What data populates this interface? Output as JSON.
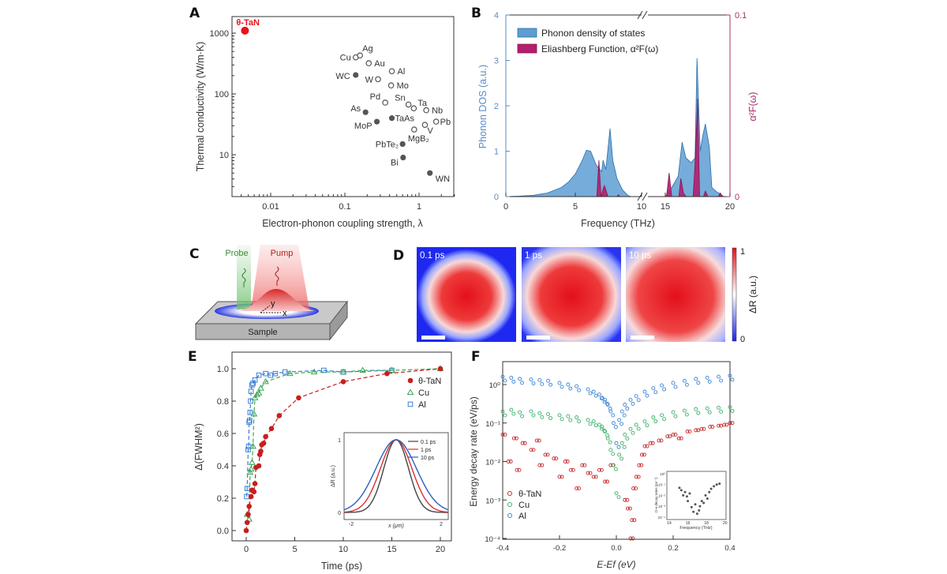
{
  "panel_labels": [
    "A",
    "B",
    "C",
    "D",
    "E",
    "F"
  ],
  "chart_data": [
    {
      "type": "scatter",
      "xlabel": "Electron-phonon coupling strength, λ",
      "ylabel": "Thermal conductivity (W/m·K)",
      "xscale": "log",
      "yscale": "log",
      "xlim": [
        0.003,
        3
      ],
      "ylim": [
        2,
        2000
      ],
      "xticks": [
        "0.01",
        "0.1",
        "1"
      ],
      "xtick_values": [
        0.01,
        0.1,
        1
      ],
      "yticks": [
        "10",
        "100",
        "1000"
      ],
      "ytick_values": [
        10,
        100,
        1000
      ],
      "highlight_color": "#e8131b",
      "points": [
        {
          "label": "θ-TaN",
          "x": 0.0045,
          "y": 1100,
          "marker": "filled-red"
        },
        {
          "label": "Cu",
          "x": 0.14,
          "y": 400,
          "marker": "open"
        },
        {
          "label": "Ag",
          "x": 0.16,
          "y": 430,
          "marker": "open"
        },
        {
          "label": "Au",
          "x": 0.21,
          "y": 320,
          "marker": "open"
        },
        {
          "label": "Al",
          "x": 0.43,
          "y": 237,
          "marker": "open"
        },
        {
          "label": "WC",
          "x": 0.14,
          "y": 205,
          "marker": "filled"
        },
        {
          "label": "W",
          "x": 0.28,
          "y": 175,
          "marker": "open"
        },
        {
          "label": "Mo",
          "x": 0.42,
          "y": 138,
          "marker": "open"
        },
        {
          "label": "Pd",
          "x": 0.35,
          "y": 72,
          "marker": "open"
        },
        {
          "label": "Sn",
          "x": 0.72,
          "y": 67,
          "marker": "open"
        },
        {
          "label": "Ta",
          "x": 0.85,
          "y": 58,
          "marker": "open"
        },
        {
          "label": "Nb",
          "x": 1.25,
          "y": 54,
          "marker": "open"
        },
        {
          "label": "As",
          "x": 0.19,
          "y": 50,
          "marker": "filled"
        },
        {
          "label": "TaAs",
          "x": 0.43,
          "y": 40,
          "marker": "filled"
        },
        {
          "label": "MoP",
          "x": 0.27,
          "y": 35,
          "marker": "filled"
        },
        {
          "label": "Pb",
          "x": 1.7,
          "y": 35,
          "marker": "open"
        },
        {
          "label": "V",
          "x": 1.2,
          "y": 31,
          "marker": "open"
        },
        {
          "label": "MgB₂",
          "x": 0.86,
          "y": 26,
          "marker": "open"
        },
        {
          "label": "PbTe₂",
          "x": 0.6,
          "y": 15,
          "marker": "filled"
        },
        {
          "label": "Bi",
          "x": 0.61,
          "y": 9,
          "marker": "filled"
        },
        {
          "label": "WN",
          "x": 1.4,
          "y": 5,
          "marker": "filled"
        }
      ]
    },
    {
      "type": "area",
      "xlabel": "Frequency (THz)",
      "ylabel": "Phonon DOS (a.u.)",
      "ylabel_right": "α²F(ω)",
      "x_axis_break": [
        10,
        15
      ],
      "xticks": [
        "0",
        "5",
        "10",
        "15",
        "20"
      ],
      "xtick_values": [
        0,
        5,
        10,
        15,
        20
      ],
      "ylim": [
        0,
        4
      ],
      "yticks": [
        "0",
        "1",
        "2",
        "3",
        "4"
      ],
      "ylim_right": [
        0,
        0.1
      ],
      "yticks_right": [
        "0",
        "0.1"
      ],
      "legend_position": "top-left",
      "series": [
        {
          "name": "Phonon density of states",
          "axis": "left",
          "color": "#5d9dd2",
          "segments": [
            [
              [
                0,
                0
              ],
              [
                1,
                0.01
              ],
              [
                2,
                0.03
              ],
              [
                3,
                0.08
              ],
              [
                4,
                0.2
              ],
              [
                4.5,
                0.32
              ],
              [
                5,
                0.5
              ],
              [
                5.5,
                0.8
              ],
              [
                5.8,
                1.02
              ],
              [
                6.1,
                1.0
              ],
              [
                6.5,
                0.7
              ],
              [
                6.9,
                0.55
              ],
              [
                7.0,
                0.8
              ],
              [
                7.2,
                0.6
              ],
              [
                7.5,
                1.5
              ],
              [
                7.7,
                0.8
              ],
              [
                8.0,
                0.4
              ],
              [
                8.4,
                0.15
              ],
              [
                8.8,
                0.02
              ],
              [
                9,
                0
              ]
            ],
            [
              [
                15,
                0
              ],
              [
                15.5,
                0.2
              ],
              [
                16,
                0.45
              ],
              [
                16.3,
                1.2
              ],
              [
                16.6,
                0.85
              ],
              [
                17,
                0.75
              ],
              [
                17.3,
                0.85
              ],
              [
                17.45,
                3.05
              ],
              [
                17.7,
                1.0
              ],
              [
                17.9,
                1.35
              ],
              [
                18.1,
                1.6
              ],
              [
                18.4,
                1.1
              ],
              [
                18.6,
                0.2
              ],
              [
                19,
                0.1
              ],
              [
                19.3,
                0.05
              ],
              [
                19.5,
                0
              ]
            ]
          ]
        },
        {
          "name": "Eliashberg Function, α²F(ω)",
          "axis": "right",
          "color": "#b21f6b",
          "segments": [
            [
              [
                6.55,
                0
              ],
              [
                6.7,
                0.02
              ],
              [
                6.85,
                0
              ],
              [
                7.0,
                0.004
              ],
              [
                7.1,
                0.006
              ],
              [
                7.35,
                0
              ],
              [
                8.0,
                0
              ],
              [
                8.1,
                0.001
              ],
              [
                8.2,
                0
              ]
            ],
            [
              [
                15.1,
                0
              ],
              [
                15.3,
                0.013
              ],
              [
                15.5,
                0
              ],
              [
                16.05,
                0
              ],
              [
                16.2,
                0.01
              ],
              [
                16.4,
                0.002
              ],
              [
                16.6,
                0
              ],
              [
                17.15,
                0
              ],
              [
                17.3,
                0.018
              ],
              [
                17.5,
                0.054
              ],
              [
                17.65,
                0
              ],
              [
                17.95,
                0
              ],
              [
                18.1,
                0.003
              ],
              [
                18.3,
                0
              ],
              [
                19.1,
                0
              ],
              [
                19.25,
                0.002
              ],
              [
                19.4,
                0
              ]
            ]
          ]
        }
      ]
    },
    {
      "type": "heatmap",
      "colorbar_label": "ΔR (a.u.)",
      "colorbar_range": [
        0,
        1
      ],
      "colorbar_ticks": [
        "0",
        "1"
      ],
      "colormap": [
        "#1a22f0",
        "#ffffff",
        "#e5121a"
      ],
      "frames": [
        {
          "label": "0.1 ps",
          "spot_size": 0.5
        },
        {
          "label": "1 ps",
          "spot_size": 0.62
        },
        {
          "label": "10 ps",
          "spot_size": 0.76
        }
      ]
    },
    {
      "type": "scatter",
      "xlabel": "Time (ps)",
      "ylabel": "Δ(FWHM²)",
      "xlim": [
        -1.5,
        21
      ],
      "ylim": [
        -0.05,
        1.1
      ],
      "xticks": [
        "0",
        "5",
        "10",
        "15",
        "20"
      ],
      "xtick_values": [
        0,
        5,
        10,
        15,
        20
      ],
      "yticks": [
        "0.0",
        "0.2",
        "0.4",
        "0.6",
        "0.8",
        "1.0"
      ],
      "ytick_values": [
        0,
        0.2,
        0.4,
        0.6,
        0.8,
        1.0
      ],
      "legend_position": "top-right",
      "series": [
        {
          "name": "θ-TaN",
          "marker": "filled-circle",
          "color": "#c81e1e",
          "x": [
            0,
            0.1,
            0.2,
            0.3,
            0.5,
            0.6,
            0.8,
            0.9,
            1.0,
            1.3,
            1.4,
            1.5,
            1.6,
            1.8,
            2.0,
            2.6,
            3.4,
            5.4,
            10,
            14.5,
            20
          ],
          "y": [
            0,
            0.05,
            0.1,
            0.15,
            0.21,
            0.25,
            0.24,
            0.29,
            0.39,
            0.4,
            0.47,
            0.49,
            0.53,
            0.54,
            0.58,
            0.63,
            0.71,
            0.82,
            0.92,
            0.97,
            1.0
          ]
        },
        {
          "name": "Cu",
          "marker": "open-triangle",
          "color": "#3aa657",
          "x": [
            0.1,
            0.3,
            0.4,
            0.5,
            0.6,
            0.7,
            0.8,
            0.9,
            1.1,
            1.3,
            1.5,
            2.0,
            4.5,
            7,
            10,
            12,
            15,
            20
          ],
          "y": [
            0.1,
            0.07,
            0.36,
            0.38,
            0.42,
            0.52,
            0.72,
            0.82,
            0.84,
            0.85,
            0.88,
            0.92,
            0.97,
            0.98,
            0.98,
            0.99,
            0.99,
            1.0
          ]
        },
        {
          "name": "Al",
          "marker": "open-square",
          "color": "#3b7fd4",
          "x": [
            0.05,
            0.1,
            0.2,
            0.25,
            0.3,
            0.35,
            0.4,
            0.45,
            0.5,
            0.6,
            0.7,
            0.9,
            1.3,
            2,
            2.5,
            3,
            4,
            8,
            10,
            15
          ],
          "y": [
            0.21,
            0.26,
            0.5,
            0.52,
            0.67,
            0.68,
            0.73,
            0.8,
            0.86,
            0.9,
            0.91,
            0.93,
            0.96,
            0.97,
            0.96,
            0.97,
            0.98,
            0.99,
            0.98,
            0.99
          ]
        }
      ],
      "inset": {
        "type": "line",
        "xlabel": "x (μm)",
        "ylabel": "ΔR (a.u.)",
        "xlim": [
          -2.3,
          2.3
        ],
        "ylim": [
          0,
          1
        ],
        "xticks": [
          "-2",
          "2"
        ],
        "yticks": [
          "0",
          "1"
        ],
        "series": [
          {
            "name": "0.1 ps",
            "color": "#444444",
            "sigma": 0.55
          },
          {
            "name": "1 ps",
            "color": "#d83030",
            "sigma": 0.7
          },
          {
            "name": "10 ps",
            "color": "#2c5fc0",
            "sigma": 0.9
          }
        ]
      }
    },
    {
      "type": "scatter",
      "xlabel": "E-Ef (eV)",
      "ylabel": "Energy decay rate (eV/ps)",
      "xlim": [
        -0.4,
        0.4
      ],
      "ylim": [
        0.0001,
        4
      ],
      "yscale": "log",
      "xticks": [
        "-0.4",
        "-0.2",
        "0.0",
        "0.2",
        "0.4"
      ],
      "xtick_values": [
        -0.4,
        -0.2,
        0,
        0.2,
        0.4
      ],
      "yticks": [
        "10⁰",
        "10⁻¹",
        "10⁻²",
        "10⁻³",
        "10⁻⁴"
      ],
      "ytick_values": [
        1,
        0.1,
        0.01,
        0.001,
        0.0001
      ],
      "legend_position": "bottom-left",
      "series": [
        {
          "name": "θ-TaN",
          "color": "#c4282a",
          "x": [
            -0.4,
            -0.38,
            -0.36,
            -0.35,
            -0.33,
            -0.3,
            -0.28,
            -0.27,
            -0.25,
            -0.22,
            -0.2,
            -0.18,
            -0.16,
            -0.14,
            -0.12,
            -0.1,
            -0.08,
            -0.06,
            -0.04,
            -0.02,
            0.03,
            0.04,
            0.05,
            0.055,
            0.06,
            0.07,
            0.08,
            0.09,
            0.1,
            0.12,
            0.15,
            0.18,
            0.2,
            0.22,
            0.25,
            0.28,
            0.3,
            0.33,
            0.36,
            0.38,
            0.4
          ],
          "y": [
            0.05,
            0.01,
            0.04,
            0.006,
            0.03,
            0.02,
            0.035,
            0.008,
            0.015,
            0.012,
            0.004,
            0.01,
            0.006,
            0.002,
            0.008,
            0.005,
            0.004,
            0.006,
            0.003,
            0.008,
            0.001,
            0.0006,
            0.0001,
            0.0003,
            0.002,
            0.004,
            0.008,
            0.015,
            0.025,
            0.03,
            0.035,
            0.045,
            0.05,
            0.04,
            0.06,
            0.065,
            0.07,
            0.08,
            0.085,
            0.09,
            0.1
          ]
        },
        {
          "name": "Cu",
          "color": "#3bb06a",
          "x": [
            -0.4,
            -0.37,
            -0.34,
            -0.3,
            -0.27,
            -0.24,
            -0.2,
            -0.17,
            -0.14,
            -0.1,
            -0.08,
            -0.06,
            -0.05,
            -0.04,
            -0.03,
            -0.02,
            -0.01,
            0,
            0.01,
            0.02,
            0.03,
            0.05,
            0.07,
            0.1,
            0.13,
            0.16,
            0.2,
            0.24,
            0.28,
            0.32,
            0.36,
            0.4
          ],
          "y": [
            0.2,
            0.22,
            0.19,
            0.2,
            0.18,
            0.17,
            0.16,
            0.15,
            0.14,
            0.12,
            0.11,
            0.09,
            0.08,
            0.06,
            0.04,
            0.02,
            0.008,
            0.0015,
            0.015,
            0.03,
            0.05,
            0.07,
            0.09,
            0.11,
            0.14,
            0.16,
            0.19,
            0.21,
            0.23,
            0.24,
            0.25,
            0.26
          ]
        },
        {
          "name": "Al",
          "color": "#3a86d6",
          "x": [
            -0.4,
            -0.37,
            -0.34,
            -0.3,
            -0.27,
            -0.24,
            -0.2,
            -0.17,
            -0.14,
            -0.1,
            -0.08,
            -0.06,
            -0.05,
            -0.04,
            -0.03,
            -0.02,
            -0.01,
            0,
            0.01,
            0.02,
            0.03,
            0.05,
            0.07,
            0.1,
            0.13,
            0.16,
            0.2,
            0.24,
            0.28,
            0.32,
            0.36,
            0.4
          ],
          "y": [
            1.6,
            1.5,
            1.4,
            1.35,
            1.3,
            1.25,
            1.1,
            1.0,
            0.9,
            0.75,
            0.65,
            0.55,
            0.45,
            0.4,
            0.3,
            0.2,
            0.1,
            0.03,
            0.12,
            0.2,
            0.3,
            0.4,
            0.5,
            0.65,
            0.8,
            0.95,
            1.1,
            1.25,
            1.4,
            1.5,
            1.6,
            1.7
          ]
        }
      ],
      "inset": {
        "type": "scatter",
        "xlabel": "Frequency (THz)",
        "ylabel": "O-a decay rates (ps⁻¹)",
        "xlim": [
          14,
          20
        ],
        "yscale": "log",
        "ylim": [
          0.0001,
          1
        ],
        "xticks": [
          "14",
          "16",
          "18",
          "20"
        ],
        "yticks": [
          "10⁰",
          "10⁻¹",
          "10⁻²",
          "10⁻³",
          "10⁻⁴"
        ],
        "color": "#555555",
        "x": [
          15.1,
          15.3,
          15.5,
          15.7,
          15.9,
          16.0,
          16.2,
          16.4,
          16.6,
          16.8,
          17.0,
          17.2,
          17.3,
          17.5,
          17.7,
          17.9,
          18.1,
          18.3,
          18.5,
          18.8,
          19.1,
          19.4
        ],
        "y": [
          0.05,
          0.03,
          0.01,
          0.02,
          0.008,
          0.003,
          0.015,
          0.0008,
          0.0003,
          0.0015,
          0.0002,
          0.0004,
          0.001,
          0.003,
          0.002,
          0.01,
          0.005,
          0.02,
          0.04,
          0.07,
          0.1,
          0.12
        ]
      }
    }
  ],
  "schematic": {
    "probe_label": "Probe",
    "pump_label": "Pump",
    "sample_label": "Sample",
    "axis_x_label": "x",
    "axis_y_label": "y"
  }
}
